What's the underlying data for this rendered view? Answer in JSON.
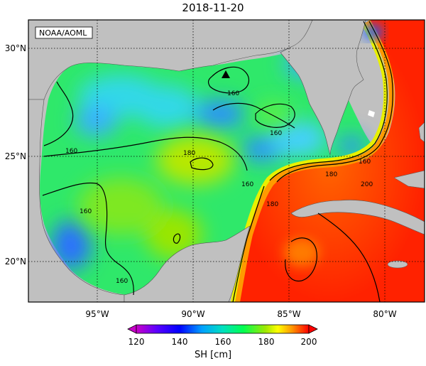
{
  "title": "2018-11-20",
  "credit": "NOAA/AOML",
  "axes": {
    "lon_ticks": [
      "95°W",
      "90°W",
      "85°W",
      "80°W"
    ],
    "lat_ticks": [
      "30°N",
      "25°N",
      "20°N"
    ]
  },
  "contour_labels": [
    "160",
    "160",
    "160",
    "160",
    "180",
    "180",
    "160",
    "180",
    "200",
    "160",
    "160"
  ],
  "colorbar": {
    "label": "SH [cm]",
    "ticks": [
      "120",
      "140",
      "160",
      "180",
      "200"
    ],
    "min": 120,
    "max": 200,
    "colors": [
      "#c800c8",
      "#7a00ff",
      "#0000ff",
      "#00a0ff",
      "#00e0e0",
      "#00ff60",
      "#8ee000",
      "#ffff00",
      "#ff9900",
      "#ff0000"
    ]
  },
  "palette": {
    "land": "#c0c0c0",
    "ocean_low": "#33ddee",
    "ocean_mid": "#22ee66",
    "ocean_high": "#ff2200"
  },
  "marker": {
    "icon": "triangle-marker-icon"
  }
}
